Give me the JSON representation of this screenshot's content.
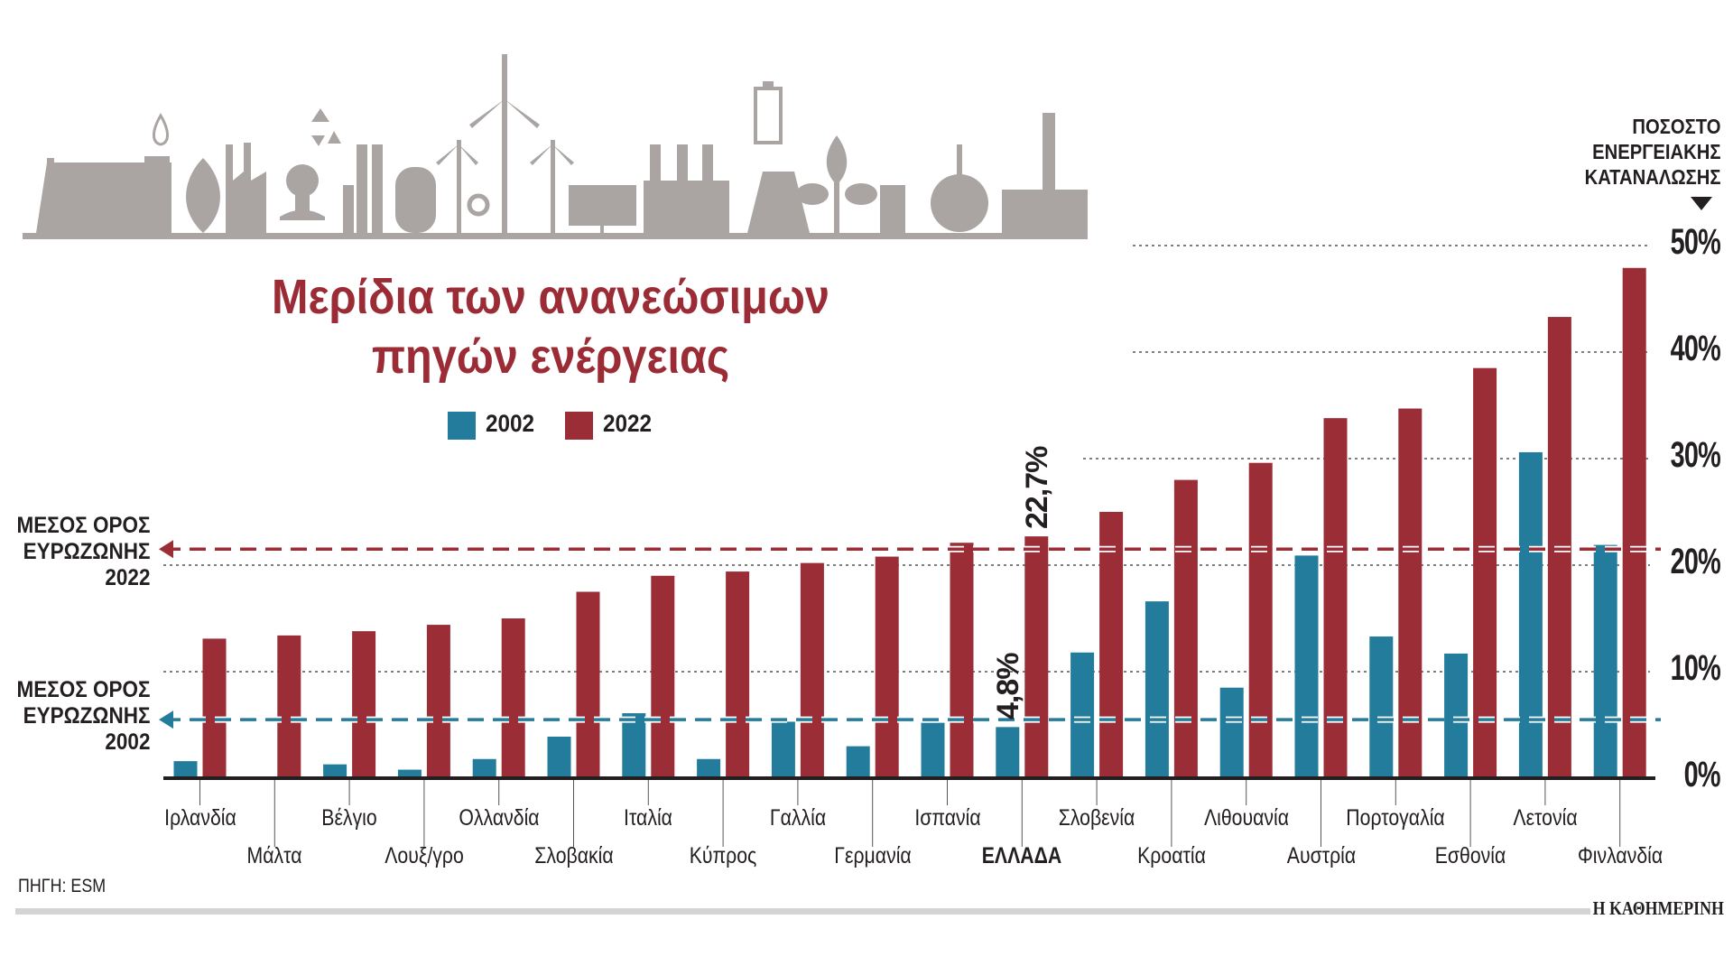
{
  "title_line1": "Μερίδια των ανανεώσιμων",
  "title_line2": "πηγών ενέργειας",
  "unit_label": [
    "ΠΟΣΟΣΤΟ",
    "ΕΝΕΡΓΕΙΑΚΗΣ",
    "ΚΑΤΑΝΑΛΩΣΗΣ"
  ],
  "avg_2022_label": [
    "ΜΕΣΟΣ ΟΡΟΣ",
    "ΕΥΡΩΖΩΝΗΣ",
    "2022"
  ],
  "avg_2002_label": [
    "ΜΕΣΟΣ ΟΡΟΣ",
    "ΕΥΡΩΖΩΝΗΣ",
    "2002"
  ],
  "source": "ΠΗΓΗ: ESM",
  "brand": "Η ΚΑΘΗΜΕΡΙΝΗ",
  "colors": {
    "s2002": "#237c9b",
    "s2022": "#9a2d36",
    "title": "#9b2c35",
    "icons": "#aaa5a3"
  },
  "chart_data": {
    "type": "bar",
    "title": "Μερίδια των ανανεώσιμων πηγών ενέργειας",
    "ylabel": "ΠΟΣΟΣΤΟ ΕΝΕΡΓΕΙΑΚΗΣ ΚΑΤΑΝΑΛΩΣΗΣ",
    "ylim": [
      0,
      50
    ],
    "yticks": [
      "0%",
      "10%",
      "20%",
      "30%",
      "40%",
      "50%"
    ],
    "legend_position": "top-center",
    "categories": [
      "Ιρλανδία",
      "Μάλτα",
      "Βέλγιο",
      "Λουξ/γρο",
      "Ολλανδία",
      "Σλοβακία",
      "Ιταλία",
      "Κύπρος",
      "Γαλλία",
      "Γερμανία",
      "Ισπανία",
      "ΕΛΛΑΔΑ",
      "Σλοβενία",
      "Κροατία",
      "Λιθουανία",
      "Αυστρία",
      "Πορτογαλία",
      "Εσθονία",
      "Λετονία",
      "Φινλανδία"
    ],
    "highlight_category": "ΕΛΛΑΔΑ",
    "series": [
      {
        "name": "2002",
        "values": [
          1.6,
          0,
          1.3,
          0.8,
          1.8,
          3.9,
          6.1,
          1.8,
          5.3,
          3.0,
          5.2,
          4.8,
          11.8,
          16.6,
          8.5,
          20.9,
          13.3,
          11.7,
          30.6,
          21.9
        ]
      },
      {
        "name": "2022",
        "values": [
          13.1,
          13.4,
          13.8,
          14.4,
          15.0,
          17.5,
          19.0,
          19.4,
          20.2,
          20.8,
          22.1,
          22.7,
          25.0,
          28.0,
          29.6,
          33.8,
          34.7,
          38.5,
          43.3,
          47.9
        ]
      }
    ],
    "reference_lines": [
      {
        "name": "Μέσος όρος ευρωζώνης 2022",
        "value": 21.5,
        "series": "2022"
      },
      {
        "name": "Μέσος όρος ευρωζώνης 2002",
        "value": 5.5,
        "series": "2002"
      }
    ],
    "annotations": [
      {
        "category": "ΕΛΛΑΔΑ",
        "series": "2022",
        "text": "22,7%"
      },
      {
        "category": "ΕΛΛΑΔΑ",
        "series": "2002",
        "text": "4,8%"
      }
    ]
  }
}
